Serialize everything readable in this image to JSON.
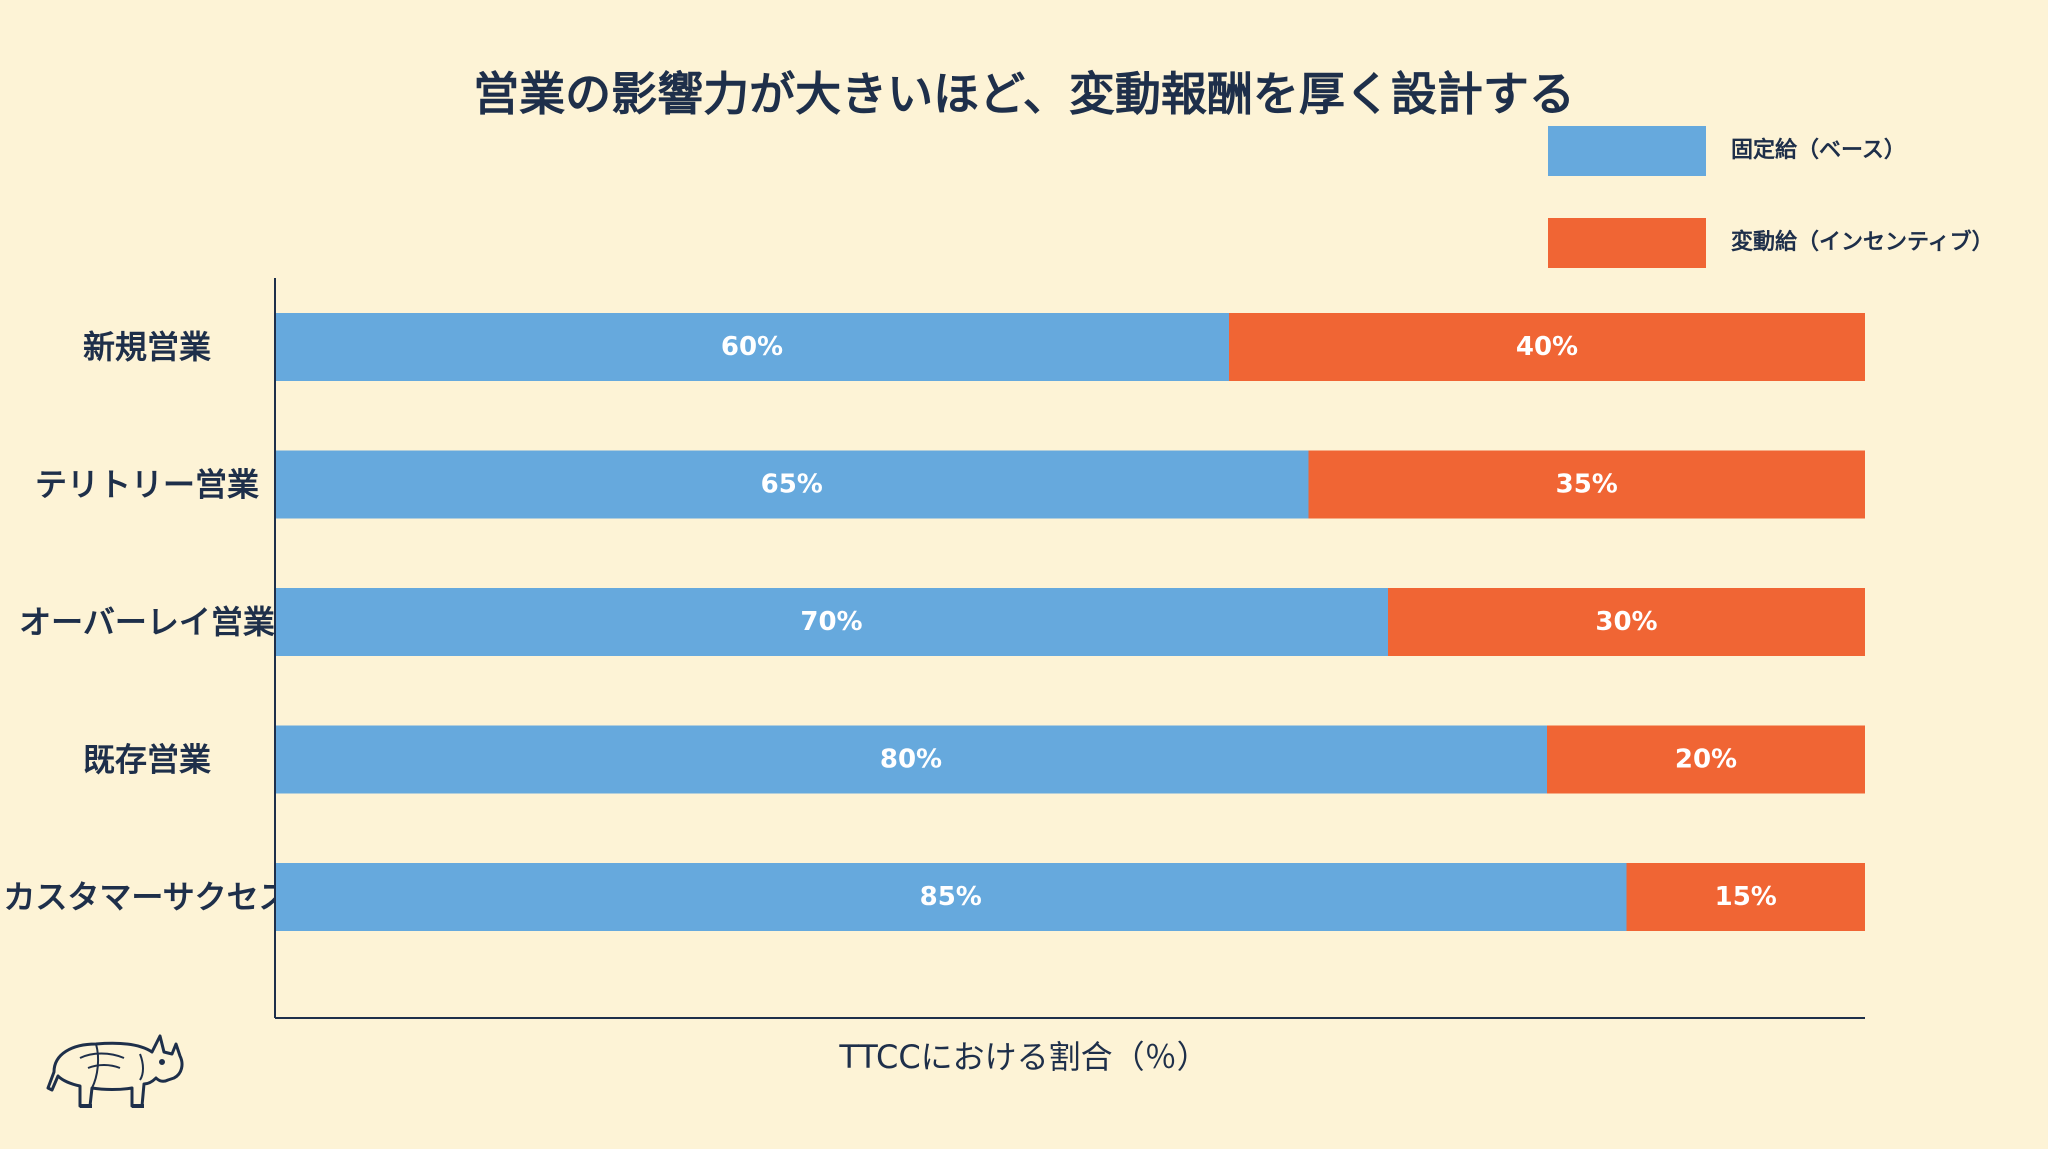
{
  "chart_data": {
    "type": "bar",
    "orientation": "horizontal",
    "stacked": true,
    "title": "営業の影響力が大きいほど、変動報酬を厚く設計する",
    "xlabel": "TTCCにおける割合（％）",
    "ylabel": "",
    "xlim": [
      0,
      100
    ],
    "categories": [
      "新規営業",
      "テリトリー営業",
      "オーバーレイ営業",
      "既存営業",
      "カスタマーサクセス"
    ],
    "series": [
      {
        "name": "固定給（ベース）",
        "color": "#66a9dd",
        "values": [
          60,
          65,
          70,
          80,
          85
        ],
        "labels": [
          "60%",
          "65%",
          "70%",
          "80%",
          "85%"
        ]
      },
      {
        "name": "変動給（インセンティブ）",
        "color": "#f06534",
        "values": [
          40,
          35,
          30,
          20,
          15
        ],
        "labels": [
          "40%",
          "35%",
          "30%",
          "20%",
          "15%"
        ]
      }
    ],
    "grid": false,
    "legend_position": "top-right"
  },
  "colors": {
    "background": "#fdf3d6",
    "text": "#1e2f4a",
    "axis": "#1e2f4a"
  },
  "logo": {
    "icon": "rhino-icon"
  }
}
